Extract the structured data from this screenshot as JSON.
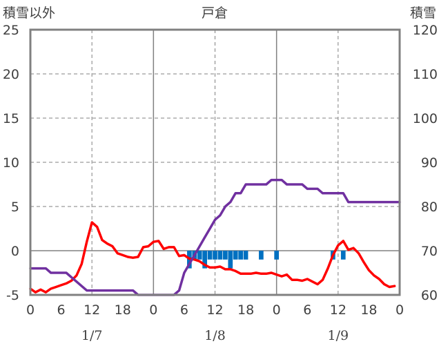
{
  "chart_data": {
    "type": "line",
    "title": "戸倉",
    "left_axis_label": "積雪以外",
    "right_axis_label": "積雪",
    "y_left": {
      "range": [
        -5,
        25
      ],
      "ticks": [
        "-5",
        "0",
        "5",
        "10",
        "15",
        "20",
        "25"
      ]
    },
    "y_right": {
      "range": [
        60,
        120
      ],
      "ticks": [
        "60",
        "70",
        "80",
        "90",
        "100",
        "110",
        "120"
      ]
    },
    "x": {
      "range_hours": [
        0,
        72
      ],
      "ticks": [
        {
          "h": 0,
          "label": "0"
        },
        {
          "h": 6,
          "label": "6"
        },
        {
          "h": 12,
          "label": "12"
        },
        {
          "h": 18,
          "label": "18"
        },
        {
          "h": 24,
          "label": "0"
        },
        {
          "h": 30,
          "label": "6"
        },
        {
          "h": 36,
          "label": "12"
        },
        {
          "h": 42,
          "label": "18"
        },
        {
          "h": 48,
          "label": "0"
        },
        {
          "h": 54,
          "label": "6"
        },
        {
          "h": 60,
          "label": "12"
        },
        {
          "h": 66,
          "label": "18"
        },
        {
          "h": 72,
          "label": "0"
        }
      ],
      "dates": [
        {
          "h": 12,
          "label": "1/7"
        },
        {
          "h": 36,
          "label": "1/8"
        },
        {
          "h": 60,
          "label": "1/9"
        }
      ]
    },
    "grid": "dashed",
    "colors": {
      "temperature": "#ff0000",
      "snow_depth": "#7030a0",
      "snowfall": "#0070c0",
      "axis": "#808080",
      "grid": "#808080",
      "day_line": "#808080",
      "text": "#404040"
    },
    "series": [
      {
        "axis": "left",
        "color": "#ff0000",
        "points": [
          [
            0,
            -4.3
          ],
          [
            1,
            -4.7
          ],
          [
            2,
            -4.4
          ],
          [
            3,
            -4.7
          ],
          [
            4,
            -4.3
          ],
          [
            5,
            -4.1
          ],
          [
            6,
            -3.9
          ],
          [
            7,
            -3.7
          ],
          [
            8,
            -3.4
          ],
          [
            9,
            -2.8
          ],
          [
            10,
            -1.5
          ],
          [
            11,
            1.0
          ],
          [
            12,
            3.2
          ],
          [
            13,
            2.7
          ],
          [
            14,
            1.2
          ],
          [
            15,
            0.8
          ],
          [
            16,
            0.5
          ],
          [
            17,
            -0.3
          ],
          [
            18,
            -0.5
          ],
          [
            19,
            -0.7
          ],
          [
            20,
            -0.8
          ],
          [
            21,
            -0.7
          ],
          [
            22,
            0.4
          ],
          [
            23,
            0.5
          ],
          [
            24,
            1.0
          ],
          [
            25,
            1.1
          ],
          [
            26,
            0.2
          ],
          [
            27,
            0.4
          ],
          [
            28,
            0.4
          ],
          [
            29,
            -0.6
          ],
          [
            30,
            -0.5
          ],
          [
            31,
            -0.9
          ],
          [
            32,
            -1.0
          ],
          [
            33,
            -1.2
          ],
          [
            34,
            -1.6
          ],
          [
            35,
            -1.9
          ],
          [
            36,
            -1.9
          ],
          [
            37,
            -1.8
          ],
          [
            38,
            -2.1
          ],
          [
            39,
            -2.1
          ],
          [
            40,
            -2.3
          ],
          [
            41,
            -2.6
          ],
          [
            42,
            -2.6
          ],
          [
            43,
            -2.6
          ],
          [
            44,
            -2.5
          ],
          [
            45,
            -2.6
          ],
          [
            46,
            -2.6
          ],
          [
            47,
            -2.5
          ],
          [
            48,
            -2.7
          ],
          [
            49,
            -2.9
          ],
          [
            50,
            -2.7
          ],
          [
            51,
            -3.3
          ],
          [
            52,
            -3.3
          ],
          [
            53,
            -3.4
          ],
          [
            54,
            -3.2
          ],
          [
            55,
            -3.5
          ],
          [
            56,
            -3.8
          ],
          [
            57,
            -3.3
          ],
          [
            58,
            -2.0
          ],
          [
            59,
            -0.5
          ],
          [
            60,
            0.6
          ],
          [
            61,
            1.1
          ],
          [
            62,
            0.1
          ],
          [
            63,
            0.3
          ],
          [
            64,
            -0.3
          ],
          [
            65,
            -1.3
          ],
          [
            66,
            -2.2
          ],
          [
            67,
            -2.8
          ],
          [
            68,
            -3.2
          ],
          [
            69,
            -3.8
          ],
          [
            70,
            -4.1
          ],
          [
            71,
            -4.0
          ]
        ]
      },
      {
        "axis": "right",
        "color": "#7030a0",
        "points": [
          [
            0,
            66
          ],
          [
            3,
            66
          ],
          [
            4,
            65
          ],
          [
            7,
            65
          ],
          [
            8,
            64
          ],
          [
            9,
            63
          ],
          [
            10,
            62
          ],
          [
            11,
            61
          ],
          [
            20,
            61
          ],
          [
            21,
            60
          ],
          [
            28,
            60
          ],
          [
            29,
            61
          ],
          [
            30,
            65
          ],
          [
            31,
            67
          ],
          [
            32,
            69
          ],
          [
            33,
            71
          ],
          [
            34,
            73
          ],
          [
            35,
            75
          ],
          [
            36,
            77
          ],
          [
            37,
            78
          ],
          [
            38,
            80
          ],
          [
            39,
            81
          ],
          [
            40,
            83
          ],
          [
            41,
            83
          ],
          [
            42,
            85
          ],
          [
            46,
            85
          ],
          [
            47,
            86
          ],
          [
            49,
            86
          ],
          [
            50,
            85
          ],
          [
            53,
            85
          ],
          [
            54,
            84
          ],
          [
            56,
            84
          ],
          [
            57,
            83
          ],
          [
            61,
            83
          ],
          [
            62,
            81
          ],
          [
            72,
            81
          ]
        ]
      }
    ],
    "bars": {
      "axis": "left",
      "color": "#0070c0",
      "values": [
        [
          31,
          2.0
        ],
        [
          32,
          1.0
        ],
        [
          33,
          1.0
        ],
        [
          34,
          2.0
        ],
        [
          35,
          1.0
        ],
        [
          36,
          1.0
        ],
        [
          37,
          1.0
        ],
        [
          38,
          1.0
        ],
        [
          39,
          2.0
        ],
        [
          40,
          1.0
        ],
        [
          41,
          1.0
        ],
        [
          42,
          1.0
        ],
        [
          45,
          1.0
        ],
        [
          48,
          1.0
        ],
        [
          59,
          1.0
        ],
        [
          61,
          1.0
        ]
      ]
    }
  }
}
